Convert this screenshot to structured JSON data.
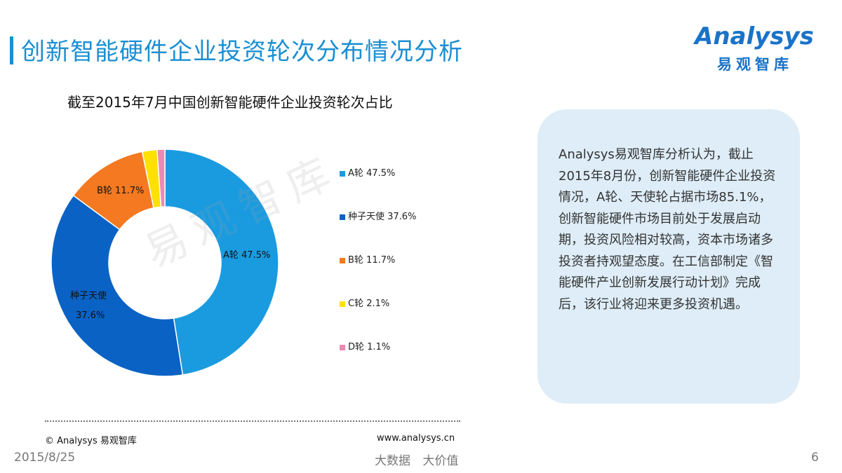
{
  "page": {
    "title": "创新智能硬件企业投资轮次分布情况分析",
    "logo_word": "Analysys",
    "logo_cn": "易观智库",
    "watermark": "易观智库"
  },
  "chart_data": {
    "type": "pie",
    "title": "截至2015年7月中国创新智能硬件企业投资轮次占比",
    "categories": [
      "A轮",
      "种子天使",
      "B轮",
      "C轮",
      "D轮"
    ],
    "values": [
      47.5,
      37.6,
      11.7,
      2.1,
      1.1
    ],
    "value_labels": [
      "47.5%",
      "37.6%",
      "11.7%",
      "2.1%",
      "1.1%"
    ],
    "colors": [
      "#1a9be0",
      "#0a62c4",
      "#f47920",
      "#ffe000",
      "#e98bb3"
    ],
    "legend": "right"
  },
  "text_box": {
    "body": "Analysys易观智库分析认为，截止2015年8月份，创新智能硬件企业投资情况，A轮、天使轮占据市场85.1%，创新智能硬件市场目前处于发展启动期，投资风险相对较高，资本市场诸多投资者持观望态度。在工信部制定《智能硬件产业创新发展行动计划》完成后，该行业将迎来更多投资机遇。"
  },
  "footer": {
    "copyright": "© Analysys 易观智库",
    "url": "www.analysys.cn",
    "date": "2015/8/25",
    "slogan": "大数据 大价值",
    "page_number": "6"
  }
}
